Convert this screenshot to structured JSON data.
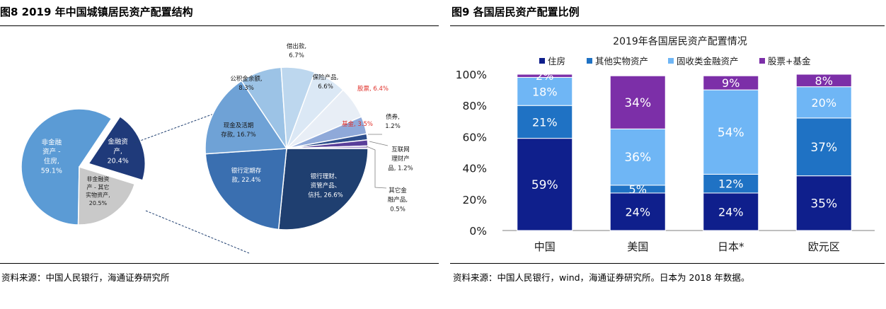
{
  "left": {
    "title": "图8 2019 年中国城镇居民资产配置结构",
    "source": "资料来源：中国人民银行，海通证券研究所"
  },
  "right": {
    "title": "图9 各国居民资产配置比例",
    "source": "资料来源：中国人民银行，wind，海通证券研究所。日本为 2018 年数据。"
  },
  "chart_data": [
    {
      "type": "pie",
      "title": "",
      "slices": [
        {
          "label_lines": [
            "非金融",
            "资产 -",
            "住房,",
            "59.1%"
          ],
          "value": 59.1,
          "color": "#5b9bd5"
        },
        {
          "label_lines": [
            "金融资",
            "产,",
            "20.4%"
          ],
          "value": 20.4,
          "color": "#1f3a7a"
        },
        {
          "label_lines": [
            "非金融资",
            "产 - 其它",
            "实物资产,",
            "20.5%"
          ],
          "value": 20.5,
          "color": "#c9c9c9"
        }
      ]
    },
    {
      "type": "pie",
      "title": "",
      "slices": [
        {
          "label_lines": [
            "银行理财、",
            "资管产品、",
            "信托, 26.6%"
          ],
          "value": 26.6,
          "color": "#1f3f70",
          "label_color": "#ffffff"
        },
        {
          "label_lines": [
            "银行定期存",
            "款, 22.4%"
          ],
          "value": 22.4,
          "color": "#3a6fb0",
          "label_color": "#ffffff"
        },
        {
          "label_lines": [
            "现金及活期",
            "存款, 16.7%"
          ],
          "value": 16.7,
          "color": "#6fa2d6",
          "label_color": "#1a1a1a"
        },
        {
          "label_lines": [
            "公积金余额,",
            "8.3%"
          ],
          "value": 8.3,
          "color": "#9cc3e6",
          "label_color": "#1a1a1a"
        },
        {
          "label_lines": [
            "借出款,",
            "6.7%"
          ],
          "value": 6.7,
          "color": "#bdd7ee",
          "label_color": "#1a1a1a"
        },
        {
          "label_lines": [
            "保险产品,",
            "6.6%"
          ],
          "value": 6.6,
          "color": "#dbe8f5",
          "label_color": "#1a1a1a"
        },
        {
          "label_lines": [
            "股票, 6.4%"
          ],
          "value": 6.4,
          "color": "#e8eef6",
          "label_color": "#e0302a"
        },
        {
          "label_lines": [
            "基金, 3.5%"
          ],
          "value": 3.5,
          "color": "#8fa9d9",
          "label_color": "#e0302a"
        },
        {
          "label_lines": [
            "债券,",
            "1.2%"
          ],
          "value": 1.2,
          "color": "#2d4e8c",
          "label_color": "#1a1a1a"
        },
        {
          "label_lines": [
            "互联网",
            "理财产",
            "品, 1.2%"
          ],
          "value": 1.2,
          "color": "#5a3f9a",
          "label_color": "#1a1a1a"
        },
        {
          "label_lines": [
            "其它金",
            "融产品,",
            "0.5%"
          ],
          "value": 0.5,
          "color": "#b09fd0",
          "label_color": "#1a1a1a"
        }
      ]
    },
    {
      "type": "bar",
      "stacked": true,
      "title": "2019年各国居民资产配置情况",
      "categories": [
        "中国",
        "美国",
        "日本*",
        "欧元区"
      ],
      "ylim": [
        0,
        100
      ],
      "yticks": [
        "0%",
        "20%",
        "40%",
        "60%",
        "80%",
        "100%"
      ],
      "legend_position": "top",
      "series": [
        {
          "name": "住房",
          "color": "#0f1f8c",
          "values": [
            59,
            24,
            24,
            35
          ],
          "labels": [
            "59%",
            "24%",
            "24%",
            "35%"
          ]
        },
        {
          "name": "其他实物资产",
          "color": "#1f72c4",
          "values": [
            21,
            5,
            12,
            37
          ],
          "labels": [
            "21%",
            "5%",
            "12%",
            "37%"
          ]
        },
        {
          "name": "固收类金融资产",
          "color": "#6fb6f5",
          "values": [
            18,
            36,
            54,
            20
          ],
          "labels": [
            "18%",
            "36%",
            "54%",
            "20%"
          ]
        },
        {
          "name": "股票+基金",
          "color": "#7c2fa8",
          "values": [
            2,
            34,
            9,
            8
          ],
          "labels": [
            "2%",
            "34%",
            "9%",
            "8%"
          ]
        }
      ]
    }
  ]
}
